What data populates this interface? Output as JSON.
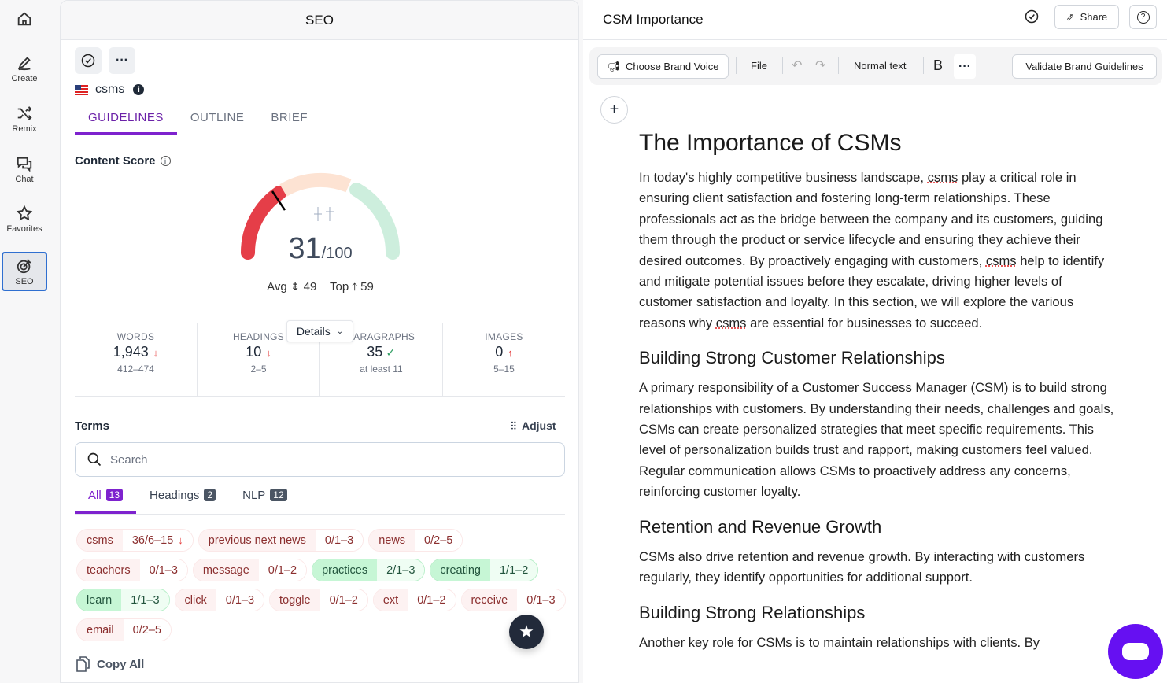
{
  "sidebar": {
    "items": [
      {
        "label": "Create"
      },
      {
        "label": "Remix"
      },
      {
        "label": "Chat"
      },
      {
        "label": "Favorites"
      },
      {
        "label": "SEO"
      }
    ]
  },
  "seo": {
    "title": "SEO",
    "keyword": "csms",
    "tabs": [
      "GUIDELINES",
      "OUTLINE",
      "BRIEF"
    ],
    "content_score_label": "Content Score",
    "score": 31,
    "score_max": "/100",
    "avg_label": "Avg",
    "avg": 49,
    "top_label": "Top",
    "top": 59,
    "details_label": "Details",
    "stats": [
      {
        "label": "WORDS",
        "value": "1,943",
        "status": "down",
        "range": "412–474"
      },
      {
        "label": "HEADINGS",
        "value": "10",
        "status": "down",
        "range": "2–5"
      },
      {
        "label": "PARAGRAPHS",
        "value": "35",
        "status": "ok",
        "range": "at least 11"
      },
      {
        "label": "IMAGES",
        "value": "0",
        "status": "up",
        "range": "5–15"
      }
    ],
    "terms_label": "Terms",
    "adjust_label": "Adjust",
    "search_placeholder": "Search",
    "term_tabs": [
      {
        "label": "All",
        "count": "13"
      },
      {
        "label": "Headings",
        "count": "2"
      },
      {
        "label": "NLP",
        "count": "12"
      }
    ],
    "terms": [
      {
        "term": "csms",
        "value": "36/6–15",
        "good": false,
        "arrow": "↓"
      },
      {
        "term": "previous next news",
        "value": "0/1–3",
        "good": false
      },
      {
        "term": "news",
        "value": "0/2–5",
        "good": false
      },
      {
        "term": "teachers",
        "value": "0/1–3",
        "good": false
      },
      {
        "term": "message",
        "value": "0/1–2",
        "good": false
      },
      {
        "term": "practices",
        "value": "2/1–3",
        "good": true
      },
      {
        "term": "creating",
        "value": "1/1–2",
        "good": true
      },
      {
        "term": "learn",
        "value": "1/1–3",
        "good": true
      },
      {
        "term": "click",
        "value": "0/1–3",
        "good": false
      },
      {
        "term": "toggle",
        "value": "0/1–2",
        "good": false
      },
      {
        "term": "ext",
        "value": "0/1–2",
        "good": false
      },
      {
        "term": "receive",
        "value": "0/1–3",
        "good": false
      },
      {
        "term": "email",
        "value": "0/2–5",
        "good": false
      }
    ],
    "copy_all_label": "Copy All"
  },
  "editor": {
    "title": "CSM Importance",
    "share_label": "Share",
    "toolbar": {
      "brand_voice": "Choose Brand Voice",
      "file": "File",
      "text_style": "Normal text",
      "bold": "B",
      "validate": "Validate Brand Guidelines"
    },
    "doc": {
      "h1": "The Importance of CSMs",
      "p1": [
        "In today's highly competitive business landscape, ",
        "csms",
        " play a critical role in ensuring client satisfaction and fostering long-term relationships. These professionals act as the bridge between the company and its customers, guiding them through the product or service lifecycle and ensuring they achieve their desired outcomes. By proactively engaging with customers, ",
        "csms",
        " help to identify and mitigate potential issues before they escalate, driving higher levels of customer satisfaction and loyalty. In this section, we will explore the various reasons why ",
        "csms",
        " are essential for businesses to succeed."
      ],
      "h2a": "Building Strong Customer Relationships",
      "p2": "A primary responsibility of a Customer Success Manager (CSM) is to build strong relationships with customers. By understanding their needs, challenges and goals, CSMs can create personalized strategies that meet specific requirements. This level of personalization builds trust and rapport, making customers feel valued. Regular communication allows CSMs to proactively address any concerns, reinforcing customer loyalty.",
      "h2b": "Retention and Revenue Growth",
      "p3": "CSMs also drive retention and revenue growth. By interacting with customers regularly, they identify opportunities for additional support.",
      "h2c": "Building Strong Relationships",
      "p4": "Another key role for CSMs is to maintain relationships with clients. By"
    }
  },
  "colors": {
    "accent": "#7e22ce",
    "score_red": "#e53e48",
    "score_peach": "#fde3d3",
    "score_green": "#cdeedd",
    "chat": "#6610f2"
  }
}
